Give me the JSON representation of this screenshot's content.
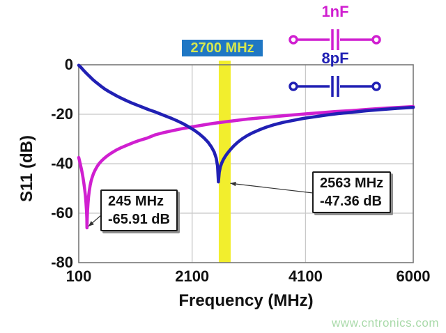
{
  "watermark": {
    "text": "www.cntronics.com",
    "color": "#a9daa9"
  },
  "chart_data": {
    "type": "line",
    "title": "",
    "xlabel": "Frequency (MHz)",
    "ylabel": "S11 (dB)",
    "xlim": [
      100,
      6000
    ],
    "ylim": [
      -80,
      0
    ],
    "grid": true,
    "grid_color": "#c8c8c8",
    "plot_border_color": "#777777",
    "xticks": [
      {
        "value": 100,
        "label": "100"
      },
      {
        "value": 2100,
        "label": "2100"
      },
      {
        "value": 4100,
        "label": "4100"
      },
      {
        "value": 6000,
        "label": "6000"
      }
    ],
    "yticks": [
      {
        "value": 0,
        "label": "0"
      },
      {
        "value": -20,
        "label": "-20"
      },
      {
        "value": -40,
        "label": "-40"
      },
      {
        "value": -60,
        "label": "-60"
      },
      {
        "value": -80,
        "label": "-80"
      }
    ],
    "series": [
      {
        "name": "1nF",
        "color": "#d01fd0",
        "points": [
          [
            100,
            -37.5
          ],
          [
            115,
            -38.9
          ],
          [
            130,
            -40.4
          ],
          [
            145,
            -42.0
          ],
          [
            160,
            -43.7
          ],
          [
            175,
            -45.6
          ],
          [
            190,
            -47.8
          ],
          [
            205,
            -50.3
          ],
          [
            218,
            -53.0
          ],
          [
            228,
            -55.8
          ],
          [
            236,
            -58.8
          ],
          [
            242,
            -62.0
          ],
          [
            245,
            -65.91
          ],
          [
            249,
            -62.5
          ],
          [
            255,
            -59.0
          ],
          [
            263,
            -56.0
          ],
          [
            273,
            -53.3
          ],
          [
            285,
            -51.0
          ],
          [
            300,
            -48.9
          ],
          [
            318,
            -47.0
          ],
          [
            338,
            -45.4
          ],
          [
            362,
            -43.9
          ],
          [
            390,
            -42.5
          ],
          [
            422,
            -41.2
          ],
          [
            458,
            -40.0
          ],
          [
            500,
            -38.9
          ],
          [
            550,
            -37.8
          ],
          [
            610,
            -36.7
          ],
          [
            680,
            -35.6
          ],
          [
            760,
            -34.5
          ],
          [
            850,
            -33.5
          ],
          [
            950,
            -32.5
          ],
          [
            1060,
            -31.5
          ],
          [
            1180,
            -30.5
          ],
          [
            1310,
            -29.6
          ],
          [
            1450,
            -28.3
          ],
          [
            1600,
            -27.4
          ],
          [
            1760,
            -26.6
          ],
          [
            1930,
            -25.8
          ],
          [
            2100,
            -25.1
          ],
          [
            2280,
            -24.4
          ],
          [
            2470,
            -23.7
          ],
          [
            2670,
            -23.1
          ],
          [
            2880,
            -22.5
          ],
          [
            3100,
            -21.9
          ],
          [
            3330,
            -21.4
          ],
          [
            3570,
            -20.9
          ],
          [
            3820,
            -20.4
          ],
          [
            4080,
            -19.9
          ],
          [
            4350,
            -19.4
          ],
          [
            4630,
            -18.9
          ],
          [
            4920,
            -18.5
          ],
          [
            5220,
            -18.0
          ],
          [
            5530,
            -17.5
          ],
          [
            5850,
            -17.1
          ],
          [
            6000,
            -16.9
          ]
        ]
      },
      {
        "name": "8pF",
        "color": "#2120b4",
        "points": [
          [
            100,
            -0.2
          ],
          [
            140,
            -1.1
          ],
          [
            180,
            -2.1
          ],
          [
            220,
            -3.1
          ],
          [
            260,
            -4.0
          ],
          [
            300,
            -4.9
          ],
          [
            350,
            -6.0
          ],
          [
            400,
            -7.0
          ],
          [
            450,
            -7.9
          ],
          [
            500,
            -8.8
          ],
          [
            560,
            -9.8
          ],
          [
            630,
            -10.8
          ],
          [
            700,
            -11.7
          ],
          [
            780,
            -12.7
          ],
          [
            860,
            -13.6
          ],
          [
            950,
            -14.6
          ],
          [
            1040,
            -15.5
          ],
          [
            1140,
            -16.4
          ],
          [
            1240,
            -17.3
          ],
          [
            1340,
            -18.2
          ],
          [
            1440,
            -19.0
          ],
          [
            1540,
            -19.9
          ],
          [
            1640,
            -20.8
          ],
          [
            1740,
            -21.7
          ],
          [
            1840,
            -22.7
          ],
          [
            1940,
            -23.8
          ],
          [
            2040,
            -25.1
          ],
          [
            2140,
            -26.5
          ],
          [
            2230,
            -28.0
          ],
          [
            2310,
            -29.6
          ],
          [
            2380,
            -31.3
          ],
          [
            2440,
            -33.2
          ],
          [
            2490,
            -35.3
          ],
          [
            2525,
            -37.8
          ],
          [
            2548,
            -41.0
          ],
          [
            2563,
            -47.36
          ],
          [
            2578,
            -43.5
          ],
          [
            2598,
            -41.3
          ],
          [
            2622,
            -39.7
          ],
          [
            2650,
            -38.3
          ],
          [
            2685,
            -37.0
          ],
          [
            2725,
            -35.7
          ],
          [
            2775,
            -34.3
          ],
          [
            2835,
            -32.8
          ],
          [
            2905,
            -31.3
          ],
          [
            2985,
            -29.9
          ],
          [
            3075,
            -28.6
          ],
          [
            3175,
            -27.4
          ],
          [
            3285,
            -26.3
          ],
          [
            3410,
            -25.2
          ],
          [
            3550,
            -24.2
          ],
          [
            3705,
            -23.3
          ],
          [
            3875,
            -22.5
          ],
          [
            4060,
            -21.7
          ],
          [
            4260,
            -21.0
          ],
          [
            4470,
            -20.3
          ],
          [
            4690,
            -19.7
          ],
          [
            4920,
            -19.2
          ],
          [
            5170,
            -18.6
          ],
          [
            5440,
            -18.1
          ],
          [
            5720,
            -17.6
          ],
          [
            6000,
            -17.2
          ]
        ]
      }
    ],
    "highlight_band": {
      "label": "2700 MHz",
      "from_mhz": 2570,
      "to_mhz": 2780,
      "band_color": "#f2ee2d",
      "label_bg": "#1f77c4",
      "label_color": "#d6e74f"
    },
    "annotations": [
      {
        "lines": [
          "245 MHz",
          "-65.91 dB"
        ],
        "target_mhz": 245,
        "target_db": -65.91
      },
      {
        "lines": [
          "2563 MHz",
          "-47.36 dB"
        ],
        "target_mhz": 2563,
        "target_db": -47.36
      }
    ],
    "inset_components": [
      {
        "label": "1nF",
        "type": "series-capacitor-symbol"
      },
      {
        "label": "8pF",
        "type": "series-capacitor-symbol"
      }
    ]
  }
}
